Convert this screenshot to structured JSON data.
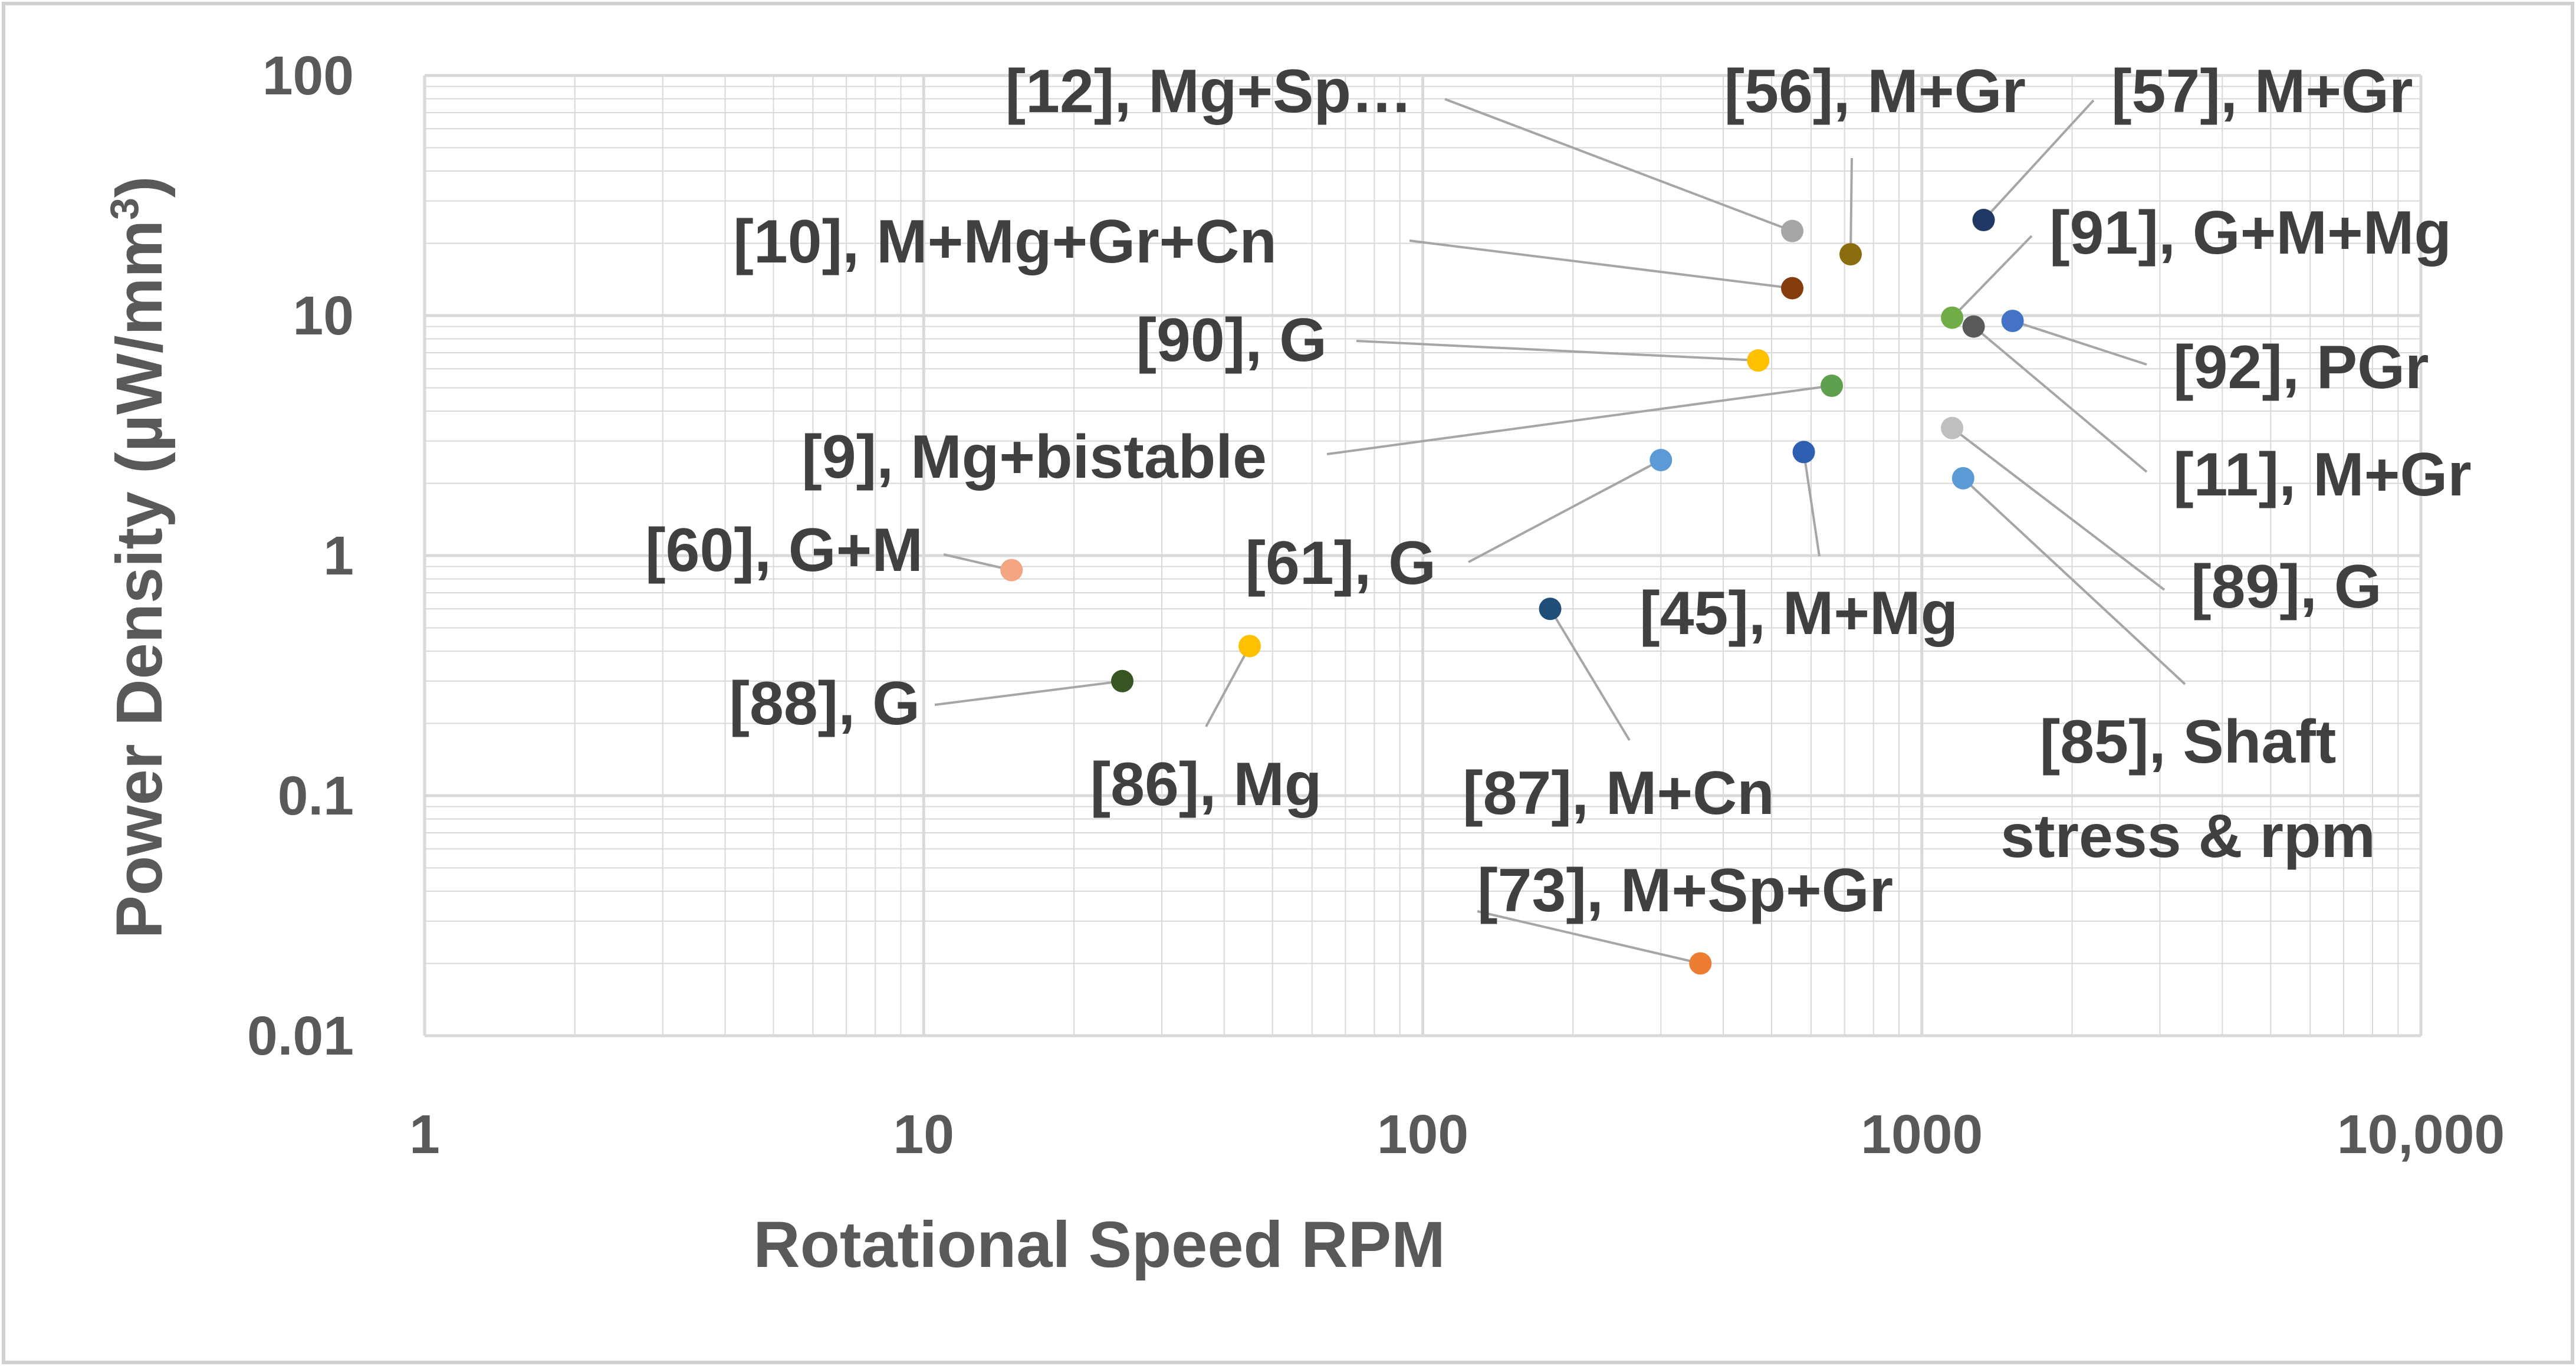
{
  "chart_data": {
    "type": "scatter",
    "title": "",
    "xlabel": "Rotational Speed RPM",
    "ylabel_main": "Power Density (µW/mm",
    "ylabel_sup": "3",
    "ylabel_close": ")",
    "xscale": "log",
    "yscale": "log",
    "xlim": [
      1,
      10000
    ],
    "ylim": [
      0.01,
      100
    ],
    "x_ticks": [
      {
        "value": 1,
        "label": "1"
      },
      {
        "value": 10,
        "label": "10"
      },
      {
        "value": 100,
        "label": "100"
      },
      {
        "value": 1000,
        "label": "1000"
      },
      {
        "value": 10000,
        "label": "10,000"
      }
    ],
    "y_ticks": [
      {
        "value": 0.01,
        "label": "0.01"
      },
      {
        "value": 0.1,
        "label": "0.1"
      },
      {
        "value": 1,
        "label": "1"
      },
      {
        "value": 10,
        "label": "10"
      },
      {
        "value": 100,
        "label": "100"
      }
    ],
    "grid": "major and minor",
    "points": [
      {
        "x": 550,
        "y": 22.5,
        "lines": [
          "[12], Mg+Sp…"
        ],
        "color": "#a6a6a6"
      },
      {
        "x": 720,
        "y": 18,
        "lines": [
          "[56], M+Gr"
        ],
        "color": "#8a6d0f"
      },
      {
        "x": 1330,
        "y": 25,
        "lines": [
          "[57], M+Gr"
        ],
        "color": "#1f3864"
      },
      {
        "x": 550,
        "y": 13,
        "lines": [
          "[10], M+Mg+Gr+Cn"
        ],
        "color": "#843c0c"
      },
      {
        "x": 1150,
        "y": 9.8,
        "lines": [
          "[91], G+M+Mg"
        ],
        "color": "#70ad47"
      },
      {
        "x": 1520,
        "y": 9.5,
        "lines": [
          "[92], PGr"
        ],
        "color": "#4472c4"
      },
      {
        "x": 1270,
        "y": 9.0,
        "lines": [
          "[11], M+Gr"
        ],
        "color": "#595959"
      },
      {
        "x": 470,
        "y": 6.5,
        "lines": [
          "[90], G"
        ],
        "color": "#ffc000"
      },
      {
        "x": 660,
        "y": 5.1,
        "lines": [
          "[9], Mg+bistable"
        ],
        "color": "#5fa04e"
      },
      {
        "x": 1150,
        "y": 3.4,
        "lines": [
          "[89], G"
        ],
        "color": "#bfbfbf"
      },
      {
        "x": 300,
        "y": 2.5,
        "lines": [
          "[61], G"
        ],
        "color": "#5b9bd5"
      },
      {
        "x": 580,
        "y": 2.7,
        "lines": [
          "[45], M+Mg"
        ],
        "color": "#2e5fb0"
      },
      {
        "x": 1210,
        "y": 2.1,
        "lines": [
          "[85], Shaft",
          "stress & rpm"
        ],
        "color": "#5b9bd5"
      },
      {
        "x": 15,
        "y": 0.87,
        "lines": [
          "[60], G+M"
        ],
        "color": "#f4a582"
      },
      {
        "x": 180,
        "y": 0.6,
        "lines": [
          "[87], M+Cn"
        ],
        "color": "#1f4e79"
      },
      {
        "x": 25,
        "y": 0.3,
        "lines": [
          "[88], G"
        ],
        "color": "#375623"
      },
      {
        "x": 45,
        "y": 0.42,
        "lines": [
          "[86], Mg"
        ],
        "color": "#ffc000"
      },
      {
        "x": 360,
        "y": 0.02,
        "lines": [
          "[73], M+Sp+Gr"
        ],
        "color": "#ed7d31"
      }
    ]
  },
  "colors": {
    "grid": "#d9d9d9",
    "axis_text": "#595959",
    "label_text": "#404040",
    "leader": "#a6a6a6",
    "border": "#d0d0d0"
  }
}
